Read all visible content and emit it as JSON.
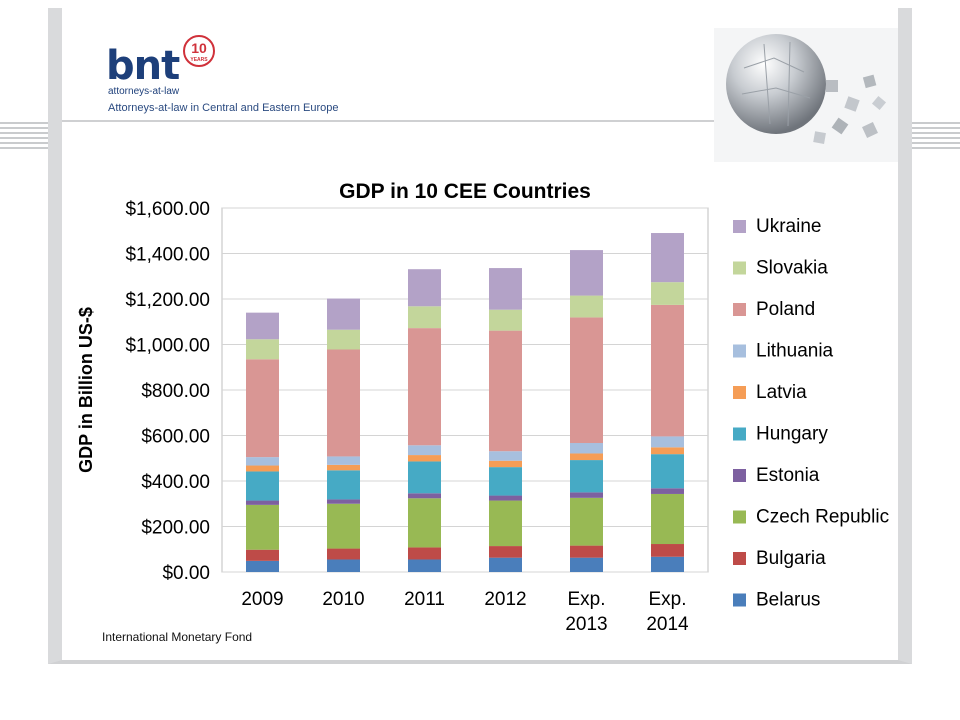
{
  "header": {
    "logo_text": "bnt",
    "logo_sub": "attorneys-at-law",
    "badge_number": "10",
    "badge_word": "YEARS",
    "tagline": "Attorneys-at-law in Central and Eastern Europe"
  },
  "source": "International Monetary Fond",
  "chart_data": {
    "type": "bar",
    "stacked": true,
    "title": "GDP in 10 CEE Countries",
    "xlabel": "",
    "ylabel": "GDP in Billion US-$",
    "ylim": [
      0,
      1600
    ],
    "yticks": [
      0,
      200,
      400,
      600,
      800,
      1000,
      1200,
      1400,
      1600
    ],
    "ytick_labels": [
      "$0.00",
      "$200.00",
      "$400.00",
      "$600.00",
      "$800.00",
      "$1,000.00",
      "$1,200.00",
      "$1,400.00",
      "$1,600.00"
    ],
    "categories": [
      [
        "2009"
      ],
      [
        "2010"
      ],
      [
        "2011"
      ],
      [
        "2012"
      ],
      [
        "Exp.",
        "2013"
      ],
      [
        "Exp.",
        "2014"
      ]
    ],
    "legend_position": "right",
    "series": [
      {
        "name": "Belarus",
        "color": "#4a7ebb",
        "values": [
          49,
          55,
          55,
          63,
          63,
          67
        ]
      },
      {
        "name": "Bulgaria",
        "color": "#be4b48",
        "values": [
          49,
          48,
          53,
          51,
          53,
          56
        ]
      },
      {
        "name": "Czech Republic",
        "color": "#98b954",
        "values": [
          197,
          197,
          216,
          200,
          210,
          220
        ]
      },
      {
        "name": "Estonia",
        "color": "#7d60a0",
        "values": [
          19,
          19,
          22,
          22,
          24,
          25
        ]
      },
      {
        "name": "Hungary",
        "color": "#46aac5",
        "values": [
          128,
          128,
          140,
          125,
          142,
          150
        ]
      },
      {
        "name": "Latvia",
        "color": "#f59d56",
        "values": [
          26,
          24,
          28,
          28,
          29,
          30
        ]
      },
      {
        "name": "Lithuania",
        "color": "#a7bfde",
        "values": [
          37,
          37,
          43,
          42,
          46,
          48
        ]
      },
      {
        "name": "Poland",
        "color": "#d99694",
        "values": [
          430,
          470,
          515,
          530,
          552,
          578
        ]
      },
      {
        "name": "Slovakia",
        "color": "#c3d69b",
        "values": [
          88,
          87,
          96,
          92,
          96,
          100
        ]
      },
      {
        "name": "Ukraine",
        "color": "#b3a2c7",
        "values": [
          117,
          137,
          163,
          183,
          200,
          216
        ]
      }
    ]
  }
}
